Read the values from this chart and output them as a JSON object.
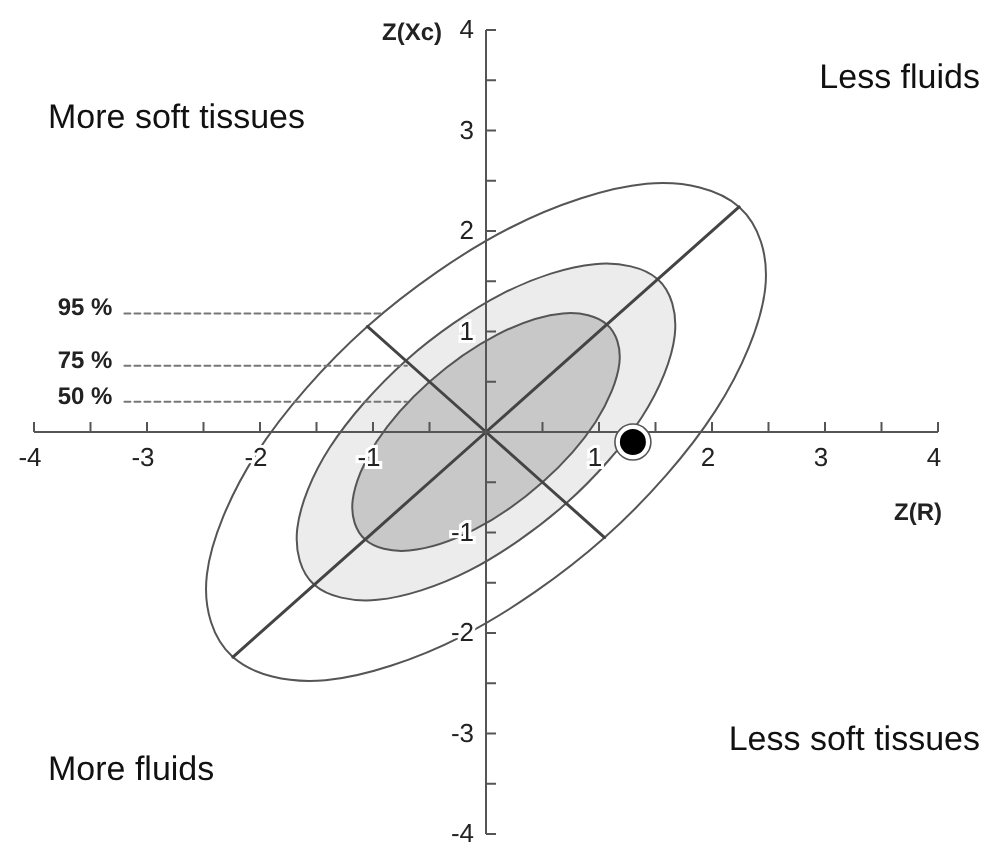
{
  "chart_data": {
    "type": "scatter",
    "xlabel": "Z(R)",
    "ylabel": "Z(Xc)",
    "xlim": [
      -4,
      4
    ],
    "ylim": [
      -4,
      4
    ],
    "xticks": [
      -4,
      {
        "value": -3.5,
        "label": null
      },
      -3,
      {
        "value": -2.5,
        "label": null
      },
      -2,
      {
        "value": -1.5,
        "label": null
      },
      -1,
      {
        "value": -0.5,
        "label": null
      },
      {
        "value": 0.5,
        "label": null
      },
      1,
      {
        "value": 1.5,
        "label": null
      },
      2,
      {
        "value": 2.5,
        "label": null
      },
      3,
      {
        "value": 3.5,
        "label": null
      },
      4
    ],
    "yticks": [
      -4,
      {
        "value": -3.5,
        "label": null
      },
      -3,
      {
        "value": -2.5,
        "label": null
      },
      -2,
      {
        "value": -1.5,
        "label": null
      },
      -1,
      {
        "value": -0.5,
        "label": null
      },
      {
        "value": 0.5,
        "label": null
      },
      1,
      {
        "value": 1.5,
        "label": null
      },
      2,
      {
        "value": 2.5,
        "label": null
      },
      3,
      {
        "value": 3.5,
        "label": null
      },
      4
    ],
    "series": [
      {
        "type": "area",
        "color": "#ffffff",
        "x": [
          2.24,
          1.42,
          0.21,
          -1.05,
          -2.03,
          -2.47,
          -2.24,
          -1.42,
          -0.21,
          1.05,
          2.03,
          2.47
        ],
        "values": [
          2.24,
          2.47,
          2.03,
          1.05,
          -0.21,
          -1.42,
          -2.24,
          -2.47,
          -2.03,
          -1.05,
          0.21,
          1.42
        ]
      },
      {
        "type": "area",
        "color": "#ececec",
        "x": [
          1.52,
          0.96,
          0.15,
          -0.71,
          -1.38,
          -1.67,
          -1.52,
          -0.96,
          -0.15,
          0.71,
          1.38,
          1.67
        ],
        "values": [
          1.52,
          1.67,
          1.38,
          0.71,
          -0.15,
          -0.96,
          -1.52,
          -1.67,
          -1.38,
          -0.71,
          0.15,
          0.96
        ]
      },
      {
        "type": "area",
        "color": "#c8c8c8",
        "x": [
          1.07,
          0.68,
          0.1,
          -0.5,
          -0.97,
          -1.18,
          -1.07,
          -0.68,
          -0.1,
          0.5,
          0.97,
          1.18
        ],
        "values": [
          1.07,
          1.18,
          0.97,
          0.5,
          -0.1,
          -0.68,
          -1.07,
          -1.18,
          -0.97,
          -0.5,
          0.1,
          0.68
        ]
      },
      {
        "type": "line",
        "color": "#444444",
        "x": [
          -2.24,
          -1.07,
          0,
          1.07,
          2.24
        ],
        "values": [
          -2.24,
          -1.07,
          0,
          1.07,
          2.24
        ]
      },
      {
        "type": "line",
        "color": "#777777",
        "line_style": "dashed",
        "x": [
          -3.2,
          -0.91
        ],
        "values": [
          1.18,
          1.18
        ]
      },
      {
        "type": "line",
        "color": "#777777",
        "line_style": "dashed",
        "x": [
          -3.2,
          -0.7
        ],
        "values": [
          0.66,
          0.66
        ]
      },
      {
        "type": "line",
        "color": "#777777",
        "line_style": "dashed",
        "x": [
          -3.2,
          -0.7
        ],
        "values": [
          0.3,
          0.3
        ]
      },
      {
        "type": "line",
        "color": "#444444",
        "x": [
          -1.05,
          -0.5,
          0,
          0.5,
          1.05
        ],
        "values": [
          1.05,
          0.5,
          0,
          -0.5,
          -1.05
        ]
      },
      {
        "color": "#000000",
        "marker": "circle",
        "x": [
          1.3
        ],
        "values": [
          -0.1
        ]
      }
    ],
    "annotations": [
      "95 %",
      "75 %",
      "50 %",
      "More soft tissues",
      "Less fluids",
      "More fluids",
      "Less soft tissues"
    ]
  }
}
